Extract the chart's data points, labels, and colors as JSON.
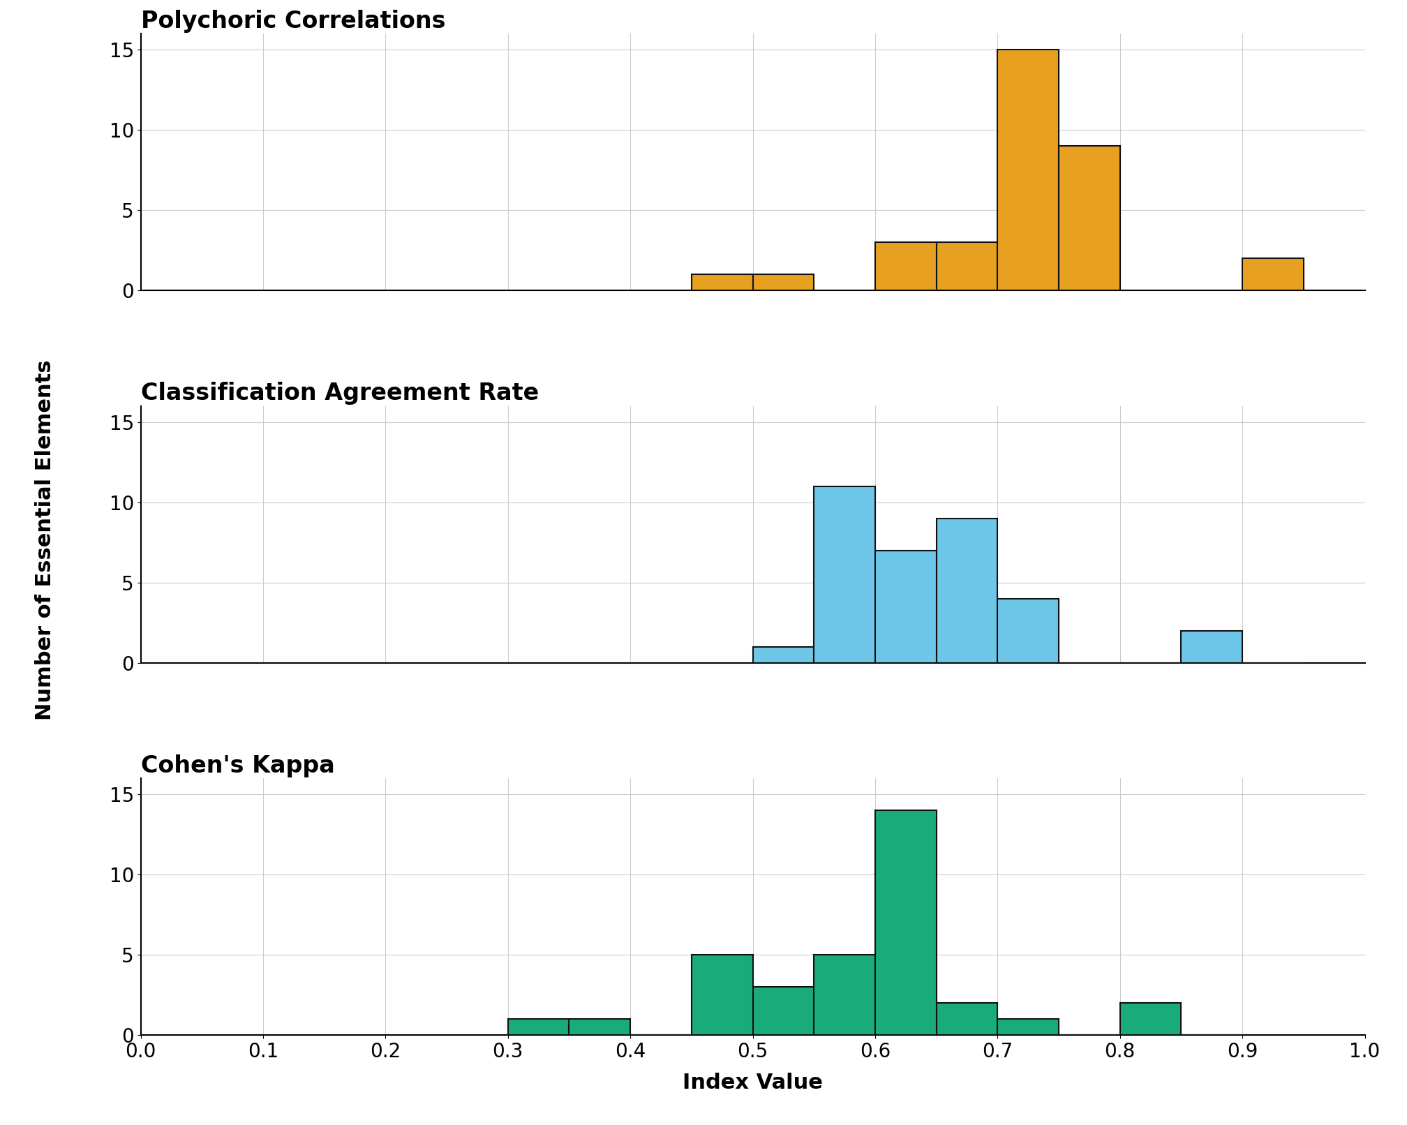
{
  "subplots": [
    {
      "title": "Polychoric Correlations",
      "color": "#E8A020",
      "edgecolor": "#111111",
      "bins": [
        0.45,
        0.5,
        0.55,
        0.6,
        0.65,
        0.7,
        0.75,
        0.8,
        0.85,
        0.9,
        0.95
      ],
      "counts": [
        1,
        1,
        0,
        3,
        3,
        15,
        9,
        0,
        0,
        2
      ]
    },
    {
      "title": "Classification Agreement Rate",
      "color": "#6EC6E8",
      "edgecolor": "#111111",
      "bins": [
        0.5,
        0.55,
        0.6,
        0.65,
        0.7,
        0.75,
        0.8,
        0.85,
        0.9,
        0.95
      ],
      "counts": [
        1,
        11,
        7,
        9,
        4,
        0,
        0,
        2,
        0
      ]
    },
    {
      "title": "Cohen's Kappa",
      "color": "#1AAB7A",
      "edgecolor": "#111111",
      "bins": [
        0.3,
        0.35,
        0.4,
        0.45,
        0.5,
        0.55,
        0.6,
        0.65,
        0.7,
        0.75,
        0.8,
        0.85,
        0.9
      ],
      "counts": [
        1,
        1,
        0,
        5,
        3,
        5,
        14,
        2,
        1,
        0,
        2,
        0
      ]
    }
  ],
  "xlim": [
    0.0,
    1.0
  ],
  "ylim": [
    0,
    16
  ],
  "yticks": [
    0,
    5,
    10,
    15
  ],
  "xticks": [
    0.0,
    0.1,
    0.2,
    0.3,
    0.4,
    0.5,
    0.6,
    0.7,
    0.8,
    0.9,
    1.0
  ],
  "xlabel": "Index Value",
  "ylabel": "Number of Essential Elements",
  "title_fontsize": 24,
  "label_fontsize": 22,
  "tick_fontsize": 20,
  "grid_color": "#CCCCCC",
  "background_color": "#FFFFFF",
  "figure_bg": "#FFFFFF"
}
